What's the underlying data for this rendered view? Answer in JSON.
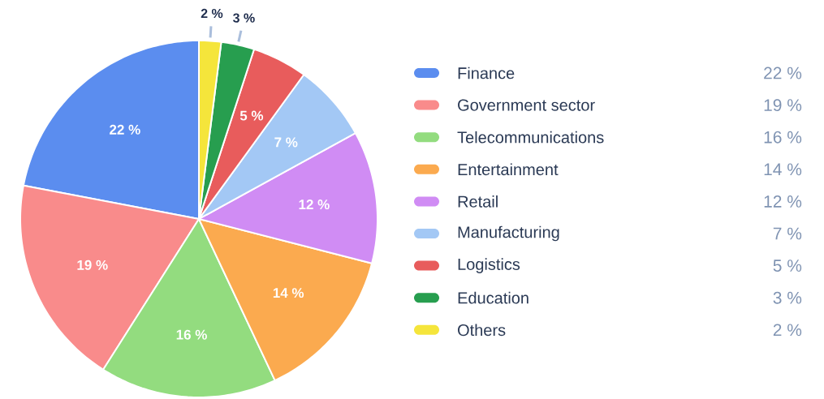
{
  "chart_data": {
    "type": "pie",
    "categories": [
      "Finance",
      "Government sector",
      "Telecommunications",
      "Entertainment",
      "Retail",
      "Manufacturing",
      "Logistics",
      "Education",
      "Others"
    ],
    "values": [
      22,
      19,
      16,
      14,
      12,
      7,
      5,
      3,
      2
    ],
    "colors": [
      "#5b8def",
      "#f98b8b",
      "#93dc7f",
      "#fbaa4f",
      "#d08cf4",
      "#a3c8f5",
      "#e85c5c",
      "#279e4f",
      "#f5e53b"
    ],
    "value_labels": [
      "22 %",
      "19 %",
      "16 %",
      "14 %",
      "12 %",
      "7 %",
      "5 %",
      "3 %",
      "2 %"
    ],
    "legend": "right"
  }
}
